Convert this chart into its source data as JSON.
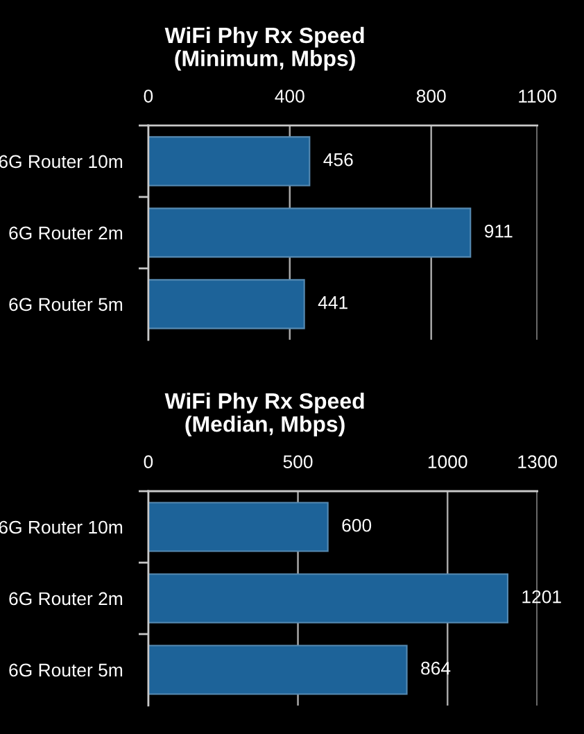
{
  "chart_data": [
    {
      "type": "bar",
      "orientation": "horizontal",
      "title": "WiFi Phy Rx Speed\n(Minimum, Mbps)",
      "categories": [
        "6G Router 10m",
        "6G Router 2m",
        "6G Router 5m"
      ],
      "values": [
        456,
        911,
        441
      ],
      "color": "#1d6399",
      "xlim": [
        0,
        1100
      ],
      "xticks": [
        0,
        400,
        800,
        1100
      ],
      "grid": "x",
      "data_labels": true
    },
    {
      "type": "bar",
      "orientation": "horizontal",
      "title": "WiFi Phy Rx Speed\n(Median, Mbps)",
      "categories": [
        "6G Router 10m",
        "6G Router 2m",
        "6G Router 5m"
      ],
      "values": [
        600,
        1201,
        864
      ],
      "color": "#1d6399",
      "xlim": [
        0,
        1300
      ],
      "xticks": [
        0,
        500,
        1000,
        1300
      ],
      "grid": "x",
      "data_labels": true
    }
  ]
}
